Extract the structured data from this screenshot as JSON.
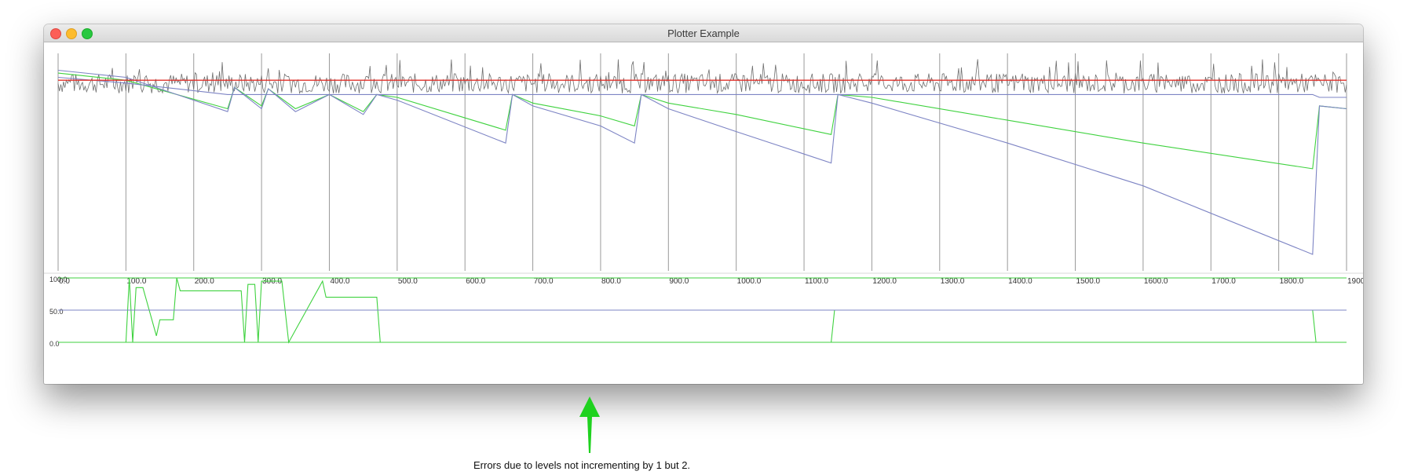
{
  "window": {
    "title": "Plotter Example"
  },
  "colors": {
    "gray_series": "#6e6e6e",
    "red_line": "#e0302a",
    "blue_series": "#7d84c4",
    "green_series": "#3fd23f",
    "arrow": "#1fd21f"
  },
  "main_plot": {
    "x_ticks": [
      "0.0",
      "100.0",
      "200.0",
      "300.0",
      "400.0",
      "500.0",
      "600.0",
      "700.0",
      "800.0",
      "900.0",
      "1000.0",
      "1100.0",
      "1200.0",
      "1300.0",
      "1400.0",
      "1500.0",
      "1600.0",
      "1700.0",
      "1800.0",
      "1900"
    ]
  },
  "sub_plot": {
    "y_ticks": [
      "100.0",
      "50.0",
      "0.0"
    ]
  },
  "annotation": {
    "arrow_icon": "up-arrow-icon",
    "text": "Errors due to levels not incrementing by 1 but 2."
  },
  "chart_data": [
    {
      "type": "line",
      "xlim": [
        0,
        1900
      ],
      "grid": "vertical",
      "series": [
        {
          "x": [
            0,
            100,
            250,
            260,
            300,
            310,
            350,
            400,
            450,
            470,
            500,
            660,
            670,
            700,
            800,
            850,
            860,
            900,
            1000,
            1140,
            1150,
            1200,
            1400,
            1600,
            1850,
            1860,
            1900
          ],
          "y": [
            95,
            90,
            70,
            85,
            72,
            84,
            70,
            80,
            68,
            80,
            78,
            55,
            80,
            74,
            65,
            58,
            80,
            74,
            66,
            52,
            80,
            78,
            62,
            46,
            28,
            72,
            70
          ]
        },
        {
          "x": [
            0,
            100,
            250,
            260,
            300,
            310,
            350,
            400,
            450,
            470,
            500,
            660,
            670,
            700,
            800,
            850,
            860,
            900,
            1000,
            1140,
            1150,
            1200,
            1400,
            1600,
            1850,
            1860,
            1900
          ],
          "y": [
            97,
            92,
            68,
            85,
            70,
            84,
            68,
            80,
            66,
            80,
            76,
            46,
            80,
            72,
            58,
            46,
            80,
            70,
            54,
            32,
            80,
            74,
            46,
            16,
            -32,
            72,
            70
          ]
        },
        {
          "x": [
            0,
            100,
            250,
            260,
            500,
            700,
            900,
            1140,
            1150,
            1200,
            1400,
            1600,
            1850,
            1860,
            1900
          ],
          "y": [
            92,
            88,
            80,
            80,
            80,
            80,
            80,
            80,
            80,
            80,
            80,
            80,
            80,
            78,
            78
          ]
        },
        {
          "x": [
            0,
            1900
          ],
          "y": [
            90,
            90
          ]
        }
      ]
    },
    {
      "type": "line",
      "ylim": [
        0,
        100
      ],
      "series": [
        {
          "x": [
            0,
            100,
            105,
            110,
            115,
            125,
            145,
            150,
            170,
            175,
            180,
            270,
            275,
            280,
            290,
            295,
            300,
            330,
            340,
            390,
            395,
            470,
            475,
            1140,
            1145,
            1850,
            1855,
            1900
          ],
          "y": [
            0,
            0,
            100,
            0,
            85,
            85,
            10,
            35,
            35,
            100,
            80,
            80,
            0,
            90,
            90,
            0,
            95,
            95,
            0,
            95,
            70,
            70,
            0,
            0,
            50,
            50,
            0,
            0
          ]
        },
        {
          "x": [
            0,
            1900
          ],
          "y": [
            50,
            50
          ]
        }
      ]
    }
  ]
}
